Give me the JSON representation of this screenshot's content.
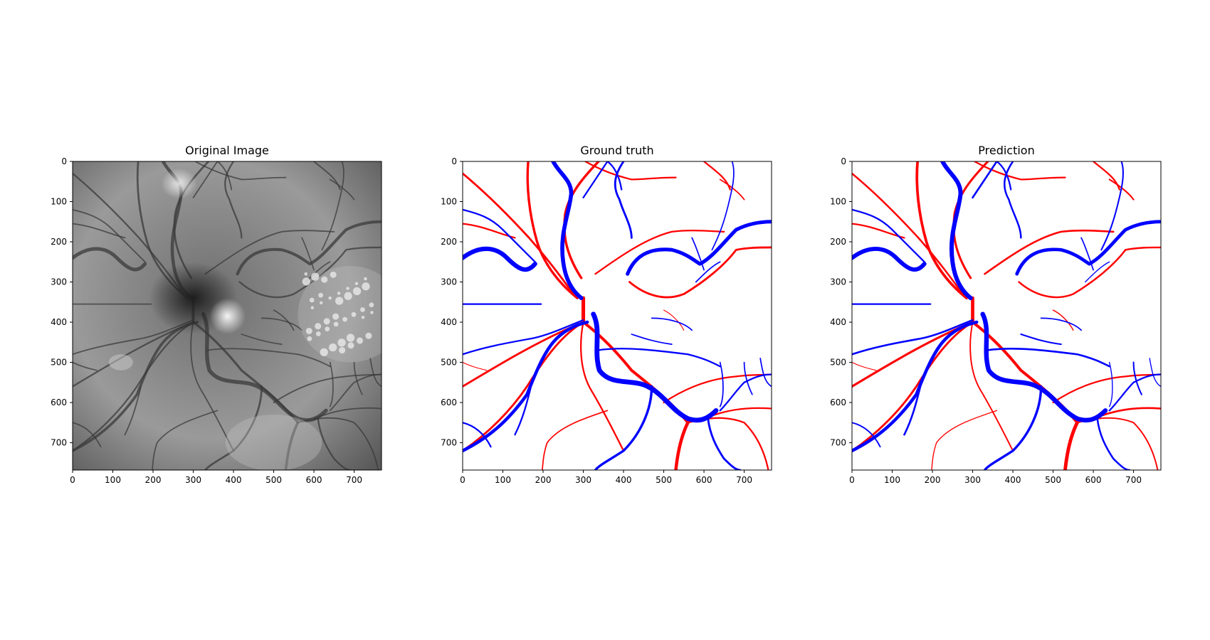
{
  "figure": {
    "panels": [
      {
        "id": "original",
        "title": "Original Image",
        "kind": "fundus-grayscale"
      },
      {
        "id": "ground_truth",
        "title": "Ground truth",
        "kind": "vessel-map"
      },
      {
        "id": "prediction",
        "title": "Prediction",
        "kind": "vessel-map"
      }
    ],
    "axes": {
      "x_ticks": [
        "0",
        "100",
        "200",
        "300",
        "400",
        "500",
        "600",
        "700"
      ],
      "y_ticks": [
        "0",
        "100",
        "200",
        "300",
        "400",
        "500",
        "600",
        "700"
      ],
      "x_range": [
        0,
        768
      ],
      "y_range": [
        0,
        768
      ],
      "y_inverted": true
    },
    "colors": {
      "artery": "#ff0000",
      "vein": "#0000ff",
      "background": "#ffffff"
    }
  }
}
